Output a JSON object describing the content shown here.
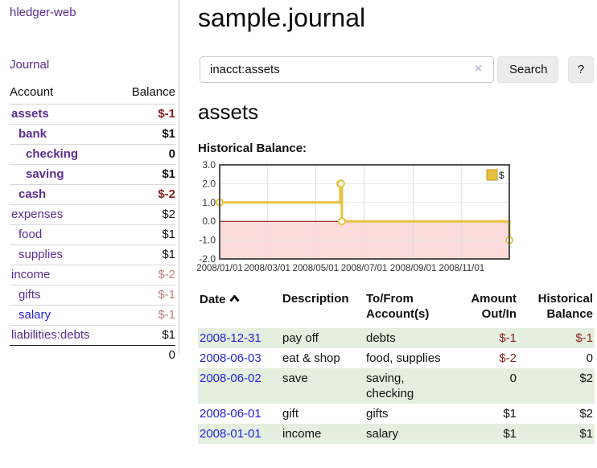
{
  "colors": {
    "link_purple": "#5c2d91",
    "link_blue": "#2323dd",
    "negative_strong": "#8e1b1b",
    "negative_weak": "#c1807f",
    "row_stripe_green": "#e4efdf",
    "button_bg": "#ececec",
    "chart_gold": "#e8c23f"
  },
  "sidebar": {
    "brand": "hledger-web",
    "nav_journal": "Journal",
    "accounts": {
      "col_account": "Account",
      "col_balance": "Balance",
      "rows": [
        {
          "label": "assets",
          "depth": 1,
          "selected": true,
          "blue": false,
          "balance": "$-1",
          "balance_style": "negS"
        },
        {
          "label": "bank",
          "depth": 2,
          "selected": true,
          "blue": false,
          "balance": "$1",
          "balance_style": "pos"
        },
        {
          "label": "checking",
          "depth": 3,
          "selected": true,
          "blue": false,
          "balance": "0",
          "balance_style": "pos"
        },
        {
          "label": "saving",
          "depth": 3,
          "selected": true,
          "blue": false,
          "balance": "$1",
          "balance_style": "pos"
        },
        {
          "label": "cash",
          "depth": 2,
          "selected": true,
          "blue": false,
          "balance": "$-2",
          "balance_style": "negS"
        },
        {
          "label": "expenses",
          "depth": 1,
          "selected": false,
          "blue": false,
          "balance": "$2",
          "balance_style": "pos"
        },
        {
          "label": "food",
          "depth": 2,
          "selected": false,
          "blue": false,
          "balance": "$1",
          "balance_style": "pos"
        },
        {
          "label": "supplies",
          "depth": 2,
          "selected": false,
          "blue": false,
          "balance": "$1",
          "balance_style": "pos"
        },
        {
          "label": "income",
          "depth": 1,
          "selected": false,
          "blue": false,
          "balance": "$-2",
          "balance_style": "negW"
        },
        {
          "label": "gifts",
          "depth": 2,
          "selected": false,
          "blue": false,
          "balance": "$-1",
          "balance_style": "negW"
        },
        {
          "label": "salary",
          "depth": 2,
          "selected": false,
          "blue": true,
          "balance": "$-1",
          "balance_style": "negW"
        },
        {
          "label": "liabilities:debts",
          "depth": 1,
          "selected": false,
          "blue": false,
          "balance": "$1",
          "balance_style": "pos"
        }
      ],
      "total": "0"
    }
  },
  "main": {
    "title": "sample.journal",
    "search": {
      "value": "inacct:assets",
      "clear_icon": "×",
      "button_label": "Search",
      "help_label": "?"
    },
    "account_heading": "assets",
    "section_label": "Historical Balance:",
    "chart_data": {
      "type": "line",
      "title": "Historical Balance",
      "step": true,
      "series": [
        {
          "name": "$",
          "color": "#e8c23f",
          "points": [
            [
              "2008-01-01",
              1
            ],
            [
              "2008-06-01",
              2
            ],
            [
              "2008-06-02",
              2
            ],
            [
              "2008-06-03",
              0
            ],
            [
              "2008-12-31",
              -1
            ]
          ]
        }
      ],
      "legend": [
        {
          "label": "$",
          "color": "#e8c23f"
        }
      ],
      "legend_position": "top-right",
      "xrange": [
        "2008-01-01",
        "2008-12-31"
      ],
      "xticks": [
        {
          "date": "2008-01-01",
          "label": "2008/01/01"
        },
        {
          "date": "2008-03-01",
          "label": "2008/03/01"
        },
        {
          "date": "2008-05-01",
          "label": "2008/05/01"
        },
        {
          "date": "2008-07-01",
          "label": "2008/07/01"
        },
        {
          "date": "2008-09-01",
          "label": "2008/09/01"
        },
        {
          "date": "2008-11-01",
          "label": "2008/11/01"
        }
      ],
      "ylim": [
        -2,
        3
      ],
      "yticks": [
        {
          "value": 3,
          "label": "3.0"
        },
        {
          "value": 2,
          "label": "2.0"
        },
        {
          "value": 1,
          "label": "1.0"
        },
        {
          "value": 0,
          "label": "0.0"
        },
        {
          "value": -1,
          "label": "-1.0"
        },
        {
          "value": -2,
          "label": "-2.0"
        }
      ],
      "grid": true,
      "negative_region_color": "#fbdada",
      "zero_line_color": "#8b0000"
    },
    "table": {
      "headers": [
        "Date",
        "Description",
        "To/From Account(s)",
        "Amount Out/In",
        "Historical Balance"
      ],
      "sort_icon": "chevron-up",
      "rows": [
        {
          "date": "2008-12-31",
          "description": "pay off",
          "accounts": "debts",
          "amount": "$-1",
          "amount_neg": true,
          "balance": "$-1",
          "balance_neg": true,
          "shaded": true
        },
        {
          "date": "2008-06-03",
          "description": "eat & shop",
          "accounts": "food, supplies",
          "amount": "$-2",
          "amount_neg": true,
          "balance": "0",
          "balance_neg": false,
          "shaded": false
        },
        {
          "date": "2008-06-02",
          "description": "save",
          "accounts": "saving, checking",
          "amount": "0",
          "amount_neg": false,
          "balance": "$2",
          "balance_neg": false,
          "shaded": true
        },
        {
          "date": "2008-06-01",
          "description": "gift",
          "accounts": "gifts",
          "amount": "$1",
          "amount_neg": false,
          "balance": "$2",
          "balance_neg": false,
          "shaded": false
        },
        {
          "date": "2008-01-01",
          "description": "income",
          "accounts": "salary",
          "amount": "$1",
          "amount_neg": false,
          "balance": "$1",
          "balance_neg": false,
          "shaded": true
        }
      ]
    }
  }
}
